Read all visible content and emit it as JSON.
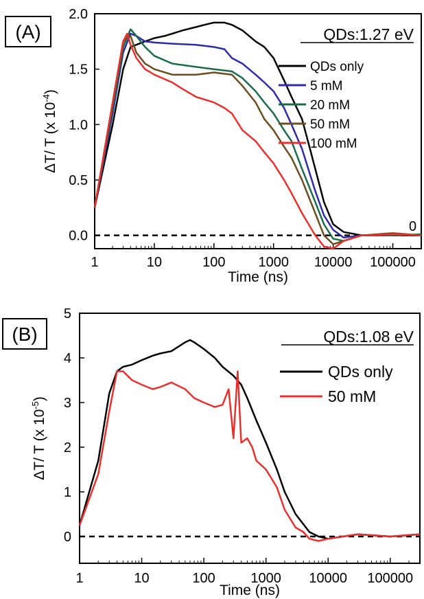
{
  "chart_data": [
    {
      "type": "line",
      "panel_label": "(A)",
      "annotation": "QDs:1.27 eV",
      "xlabel": "Time (ns)",
      "ylabel_text": "ΔT/ T (x 10",
      "ylabel_exp": "-4",
      "ylabel_close": ")",
      "x_scale": "log",
      "xlim": [
        1,
        300000
      ],
      "ylim": [
        -0.12,
        2.0
      ],
      "x_ticks": [
        1,
        10,
        100,
        1000,
        10000,
        100000
      ],
      "x_tick_labels": [
        "1",
        "10",
        "100",
        "1000",
        "10000",
        "100000"
      ],
      "y_ticks": [
        0.0,
        0.5,
        1.0,
        1.5,
        2.0
      ],
      "y_tick_labels": [
        "0.0",
        "0.5",
        "1.0",
        "1.5",
        "2.0"
      ],
      "baseline": 0,
      "baseline_style": "dashed",
      "corner_label": "0",
      "grid": false,
      "legend_position": "top-right",
      "series": [
        {
          "name": "QDs only",
          "color": "#000000",
          "points": [
            [
              1,
              0.25
            ],
            [
              2,
              1.0
            ],
            [
              3,
              1.5
            ],
            [
              4,
              1.7
            ],
            [
              5,
              1.72
            ],
            [
              7,
              1.75
            ],
            [
              10,
              1.78
            ],
            [
              15,
              1.8
            ],
            [
              20,
              1.82
            ],
            [
              30,
              1.85
            ],
            [
              50,
              1.88
            ],
            [
              70,
              1.9
            ],
            [
              100,
              1.92
            ],
            [
              150,
              1.92
            ],
            [
              200,
              1.9
            ],
            [
              300,
              1.85
            ],
            [
              500,
              1.75
            ],
            [
              700,
              1.7
            ],
            [
              1000,
              1.6
            ],
            [
              1500,
              1.4
            ],
            [
              2000,
              1.25
            ],
            [
              3000,
              1.05
            ],
            [
              4000,
              0.8
            ],
            [
              5000,
              0.6
            ],
            [
              7000,
              0.3
            ],
            [
              10000,
              0.1
            ],
            [
              15000,
              0.03
            ],
            [
              30000,
              0.0
            ],
            [
              100000,
              0.0
            ],
            [
              300000,
              0.0
            ]
          ]
        },
        {
          "name": "5 mM",
          "color": "#2c2ca8",
          "points": [
            [
              1,
              0.25
            ],
            [
              2,
              1.1
            ],
            [
              3,
              1.65
            ],
            [
              4,
              1.82
            ],
            [
              5,
              1.8
            ],
            [
              7,
              1.75
            ],
            [
              10,
              1.74
            ],
            [
              20,
              1.73
            ],
            [
              50,
              1.72
            ],
            [
              100,
              1.7
            ],
            [
              150,
              1.68
            ],
            [
              200,
              1.6
            ],
            [
              300,
              1.55
            ],
            [
              500,
              1.45
            ],
            [
              700,
              1.38
            ],
            [
              1000,
              1.3
            ],
            [
              1500,
              1.15
            ],
            [
              2000,
              1.0
            ],
            [
              3000,
              0.78
            ],
            [
              5000,
              0.4
            ],
            [
              7000,
              0.18
            ],
            [
              10000,
              0.05
            ],
            [
              15000,
              -0.02
            ],
            [
              30000,
              0.0
            ],
            [
              100000,
              0.01
            ],
            [
              300000,
              0.0
            ]
          ]
        },
        {
          "name": "20 mM",
          "color": "#1a6b4a",
          "points": [
            [
              1,
              0.25
            ],
            [
              2,
              1.15
            ],
            [
              3,
              1.7
            ],
            [
              4,
              1.86
            ],
            [
              5,
              1.8
            ],
            [
              7,
              1.7
            ],
            [
              10,
              1.62
            ],
            [
              20,
              1.55
            ],
            [
              50,
              1.52
            ],
            [
              100,
              1.5
            ],
            [
              200,
              1.48
            ],
            [
              300,
              1.42
            ],
            [
              500,
              1.3
            ],
            [
              700,
              1.2
            ],
            [
              1000,
              1.1
            ],
            [
              1500,
              0.95
            ],
            [
              2000,
              0.85
            ],
            [
              3000,
              0.6
            ],
            [
              5000,
              0.3
            ],
            [
              7000,
              0.1
            ],
            [
              10000,
              -0.03
            ],
            [
              15000,
              -0.05
            ],
            [
              30000,
              0.0
            ],
            [
              100000,
              0.0
            ],
            [
              300000,
              0.01
            ]
          ]
        },
        {
          "name": "50 mM",
          "color": "#6b4d1f",
          "points": [
            [
              1,
              0.25
            ],
            [
              2,
              1.2
            ],
            [
              3,
              1.75
            ],
            [
              4,
              1.8
            ],
            [
              5,
              1.65
            ],
            [
              7,
              1.55
            ],
            [
              10,
              1.5
            ],
            [
              20,
              1.45
            ],
            [
              50,
              1.45
            ],
            [
              100,
              1.47
            ],
            [
              200,
              1.45
            ],
            [
              300,
              1.35
            ],
            [
              500,
              1.2
            ],
            [
              700,
              1.05
            ],
            [
              1000,
              0.95
            ],
            [
              1500,
              0.8
            ],
            [
              2000,
              0.7
            ],
            [
              3000,
              0.5
            ],
            [
              5000,
              0.2
            ],
            [
              7000,
              0.0
            ],
            [
              10000,
              -0.08
            ],
            [
              15000,
              -0.05
            ],
            [
              30000,
              0.0
            ],
            [
              100000,
              0.02
            ],
            [
              300000,
              0.0
            ]
          ]
        },
        {
          "name": "100 mM",
          "color": "#e8302c",
          "points": [
            [
              1,
              0.25
            ],
            [
              2,
              1.2
            ],
            [
              3,
              1.75
            ],
            [
              3.5,
              1.82
            ],
            [
              4,
              1.72
            ],
            [
              5,
              1.6
            ],
            [
              7,
              1.5
            ],
            [
              10,
              1.45
            ],
            [
              20,
              1.38
            ],
            [
              30,
              1.32
            ],
            [
              50,
              1.25
            ],
            [
              100,
              1.2
            ],
            [
              150,
              1.15
            ],
            [
              200,
              1.1
            ],
            [
              300,
              0.95
            ],
            [
              500,
              0.85
            ],
            [
              700,
              0.75
            ],
            [
              1000,
              0.65
            ],
            [
              1500,
              0.5
            ],
            [
              2000,
              0.38
            ],
            [
              3000,
              0.2
            ],
            [
              5000,
              0.0
            ],
            [
              7000,
              -0.1
            ],
            [
              10000,
              -0.12
            ],
            [
              15000,
              -0.05
            ],
            [
              30000,
              0.0
            ],
            [
              100000,
              0.01
            ],
            [
              300000,
              0.0
            ]
          ]
        }
      ]
    },
    {
      "type": "line",
      "panel_label": "(B)",
      "annotation": "QDs:1.08  eV",
      "xlabel": "Time (ns)",
      "ylabel_text": "ΔT/ T (x 10",
      "ylabel_exp": "-5",
      "ylabel_close": ")",
      "x_scale": "log",
      "xlim": [
        1,
        300000
      ],
      "ylim": [
        -0.6,
        5.0
      ],
      "x_ticks": [
        1,
        10,
        100,
        1000,
        10000,
        100000
      ],
      "x_tick_labels": [
        "1",
        "10",
        "100",
        "1000",
        "10000",
        "100000"
      ],
      "y_ticks": [
        0,
        1,
        2,
        3,
        4,
        5
      ],
      "y_tick_labels": [
        "0",
        "1",
        "2",
        "3",
        "4",
        "5"
      ],
      "baseline": 0,
      "baseline_style": "dashed",
      "grid": false,
      "legend_position": "top-right",
      "series": [
        {
          "name": "QDs only",
          "color": "#000000",
          "points": [
            [
              1,
              0.25
            ],
            [
              2,
              1.7
            ],
            [
              3,
              3.2
            ],
            [
              4,
              3.7
            ],
            [
              5,
              3.8
            ],
            [
              7,
              3.85
            ],
            [
              10,
              3.95
            ],
            [
              15,
              4.05
            ],
            [
              20,
              4.1
            ],
            [
              30,
              4.15
            ],
            [
              50,
              4.35
            ],
            [
              60,
              4.4
            ],
            [
              70,
              4.35
            ],
            [
              100,
              4.2
            ],
            [
              150,
              4.0
            ],
            [
              200,
              3.8
            ],
            [
              300,
              3.6
            ],
            [
              400,
              3.4
            ],
            [
              500,
              3.1
            ],
            [
              700,
              2.6
            ],
            [
              1000,
              2.1
            ],
            [
              1500,
              1.5
            ],
            [
              2000,
              1.0
            ],
            [
              3000,
              0.5
            ],
            [
              5000,
              0.1
            ],
            [
              7000,
              0.0
            ],
            [
              10000,
              -0.05
            ],
            [
              30000,
              0.05
            ],
            [
              100000,
              0.0
            ],
            [
              300000,
              0.05
            ]
          ]
        },
        {
          "name": "50 mM",
          "color": "#e8302c",
          "points": [
            [
              1,
              0.25
            ],
            [
              2,
              1.4
            ],
            [
              3,
              2.8
            ],
            [
              4,
              3.7
            ],
            [
              5,
              3.7
            ],
            [
              7,
              3.5
            ],
            [
              10,
              3.4
            ],
            [
              15,
              3.3
            ],
            [
              20,
              3.35
            ],
            [
              30,
              3.45
            ],
            [
              50,
              3.3
            ],
            [
              70,
              3.1
            ],
            [
              100,
              3.0
            ],
            [
              150,
              2.9
            ],
            [
              200,
              2.95
            ],
            [
              250,
              3.3
            ],
            [
              300,
              2.2
            ],
            [
              350,
              3.7
            ],
            [
              400,
              2.1
            ],
            [
              500,
              2.2
            ],
            [
              600,
              2.0
            ],
            [
              700,
              1.7
            ],
            [
              1000,
              1.5
            ],
            [
              1500,
              1.1
            ],
            [
              2000,
              0.6
            ],
            [
              3000,
              0.2
            ],
            [
              4000,
              0.1
            ],
            [
              5000,
              -0.05
            ],
            [
              7000,
              -0.1
            ],
            [
              10000,
              -0.05
            ],
            [
              30000,
              0.05
            ],
            [
              100000,
              0.0
            ],
            [
              300000,
              0.05
            ]
          ]
        }
      ]
    }
  ]
}
